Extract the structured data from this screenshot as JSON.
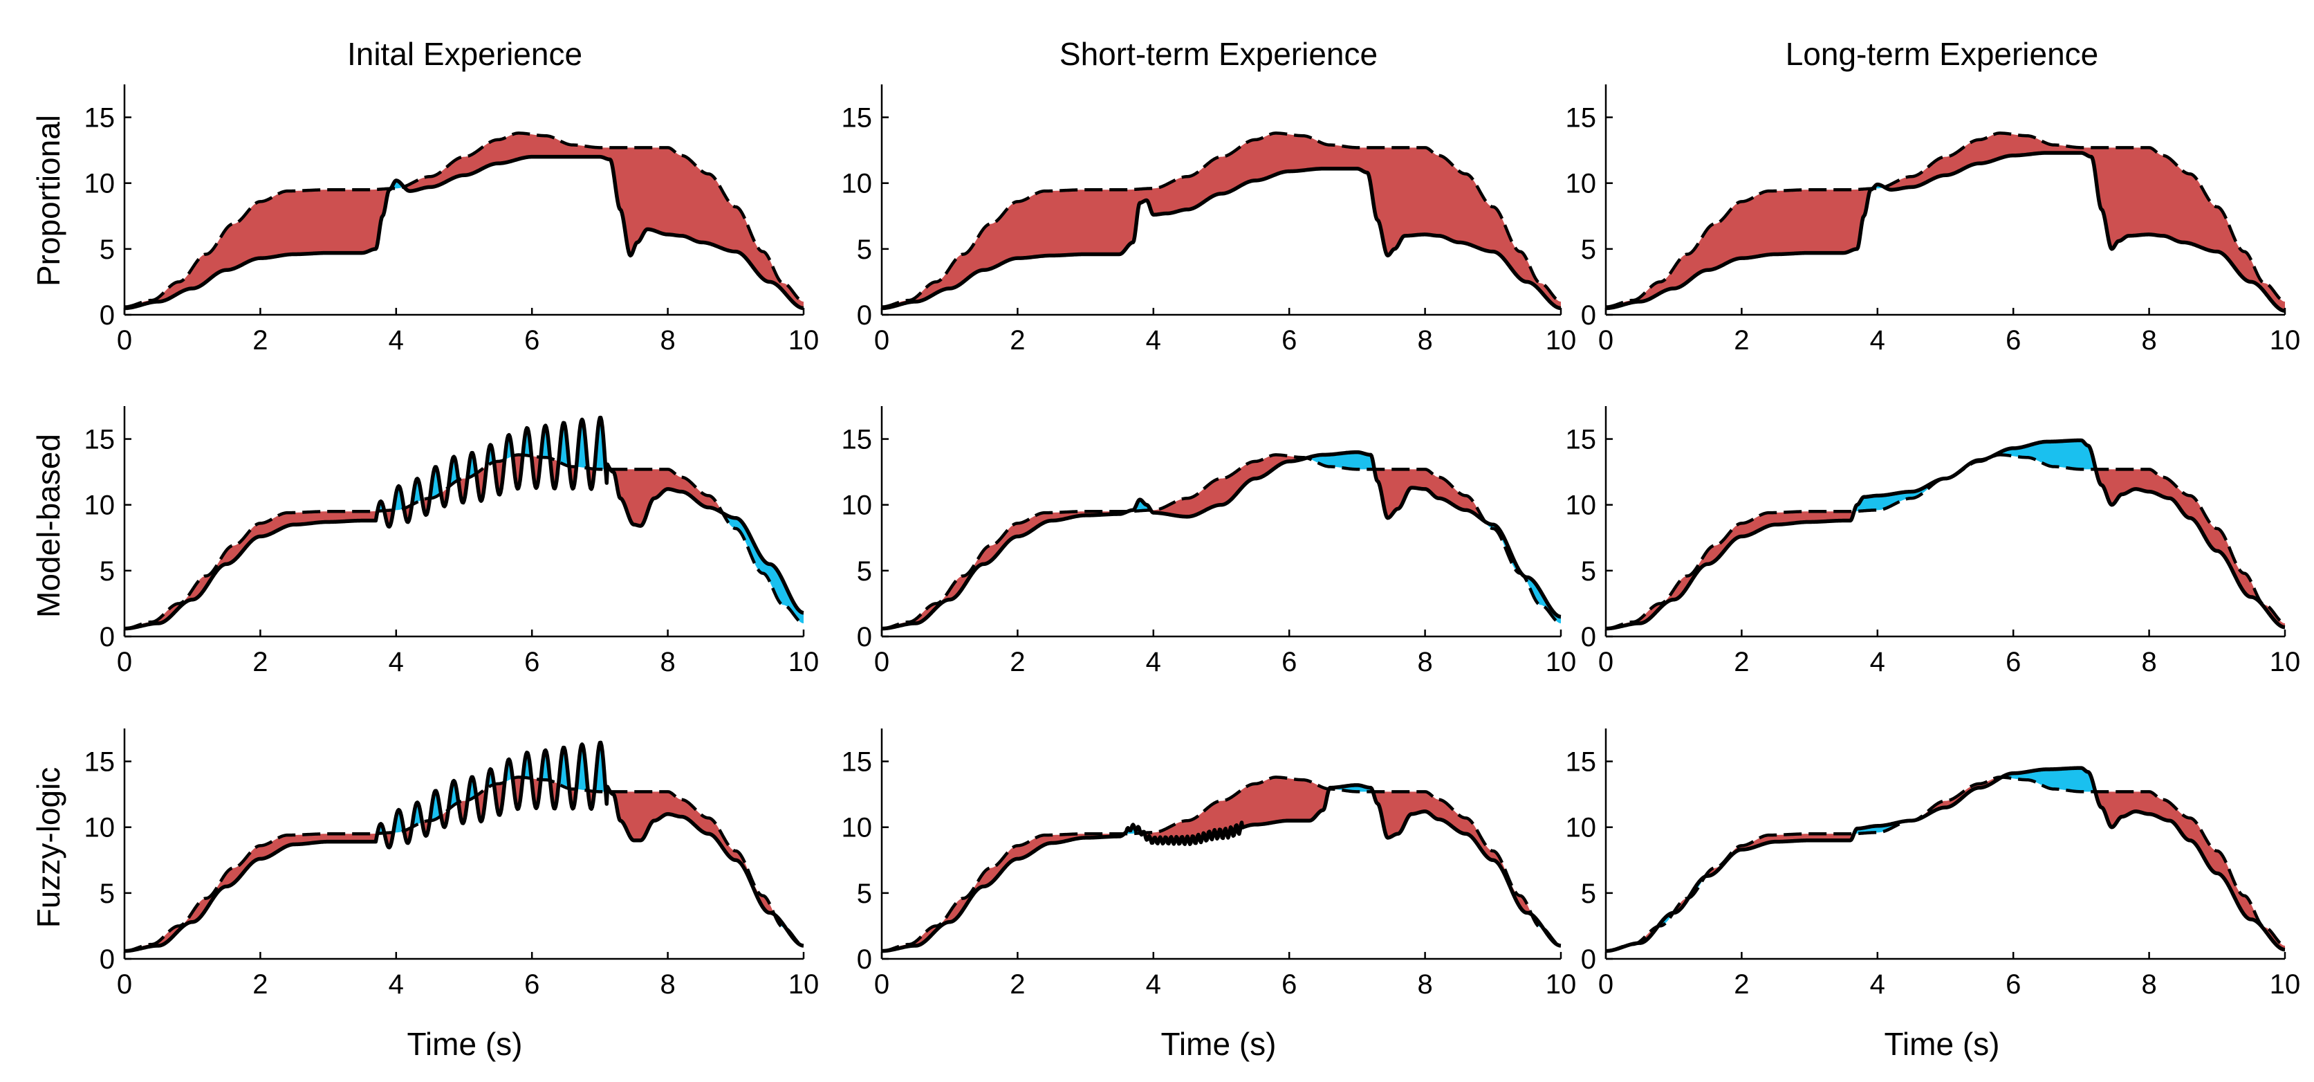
{
  "figure": {
    "columns": [
      "Inital Experience",
      "Short-term Experience",
      "Long-term Experience"
    ],
    "rows": [
      "Proportional",
      "Model-based",
      "Fuzzy-logic"
    ],
    "xlabel": "Time (s)",
    "colors": {
      "overshoot_fill": "#cd5050",
      "undershoot_fill": "#1ac0ef",
      "line": "#000000"
    }
  },
  "chart_data": {
    "type": "line",
    "description_units": "x: time (s); y: value",
    "x_range": [
      0,
      10
    ],
    "y_range": [
      0,
      17.5
    ],
    "x_ticks": [
      0,
      2,
      4,
      6,
      8,
      10
    ],
    "y_ticks": [
      0,
      5,
      10,
      15
    ],
    "legend": "none",
    "reference_series": {
      "name": "Target (dashed)",
      "x": [
        0,
        0.4,
        0.8,
        1.2,
        1.6,
        2.0,
        2.4,
        3.0,
        3.6,
        4.0,
        4.5,
        5.0,
        5.5,
        5.8,
        6.2,
        6.6,
        7.0,
        7.5,
        8.0,
        8.2,
        8.6,
        9.0,
        9.4,
        9.7,
        10.0
      ],
      "values": [
        0.6,
        1.1,
        2.5,
        4.6,
        6.9,
        8.6,
        9.4,
        9.5,
        9.5,
        9.6,
        10.5,
        12.0,
        13.3,
        13.8,
        13.6,
        12.9,
        12.7,
        12.7,
        12.7,
        12.1,
        10.7,
        8.2,
        4.8,
        2.4,
        1.0
      ]
    },
    "panels": [
      {
        "row": "Proportional",
        "column": "Inital Experience",
        "x": [
          0,
          0.5,
          1.0,
          1.5,
          2.0,
          2.5,
          3.0,
          3.5,
          3.7,
          3.8,
          3.9,
          4.0,
          4.2,
          4.5,
          5.0,
          5.5,
          6.0,
          6.5,
          7.0,
          7.15,
          7.3,
          7.45,
          7.55,
          7.7,
          8.0,
          8.2,
          8.5,
          9.0,
          9.5,
          10.0
        ],
        "values": [
          0.5,
          1.0,
          2.0,
          3.4,
          4.3,
          4.6,
          4.7,
          4.7,
          5.0,
          7.5,
          9.5,
          10.2,
          9.4,
          9.7,
          10.6,
          11.5,
          12.0,
          12.0,
          12.0,
          11.8,
          8.0,
          4.5,
          5.5,
          6.5,
          6.1,
          6.0,
          5.5,
          4.8,
          2.5,
          0.5
        ]
      },
      {
        "row": "Proportional",
        "column": "Short-term Experience",
        "x": [
          0,
          0.5,
          1.0,
          1.5,
          2.0,
          2.5,
          3.0,
          3.5,
          3.7,
          3.8,
          3.9,
          4.0,
          4.2,
          4.5,
          5.0,
          5.5,
          6.0,
          6.5,
          7.0,
          7.15,
          7.3,
          7.45,
          7.55,
          7.7,
          8.0,
          8.2,
          8.5,
          9.0,
          9.5,
          10.0
        ],
        "values": [
          0.5,
          1.0,
          2.0,
          3.4,
          4.3,
          4.5,
          4.6,
          4.6,
          5.5,
          8.5,
          8.7,
          7.6,
          7.7,
          8.0,
          9.2,
          10.2,
          10.9,
          11.1,
          11.1,
          10.8,
          7.2,
          4.5,
          5.0,
          6.0,
          6.1,
          6.0,
          5.5,
          4.8,
          2.5,
          0.5
        ]
      },
      {
        "row": "Proportional",
        "column": "Long-term Experience",
        "x": [
          0,
          0.5,
          1.0,
          1.5,
          2.0,
          2.5,
          3.0,
          3.5,
          3.7,
          3.8,
          3.9,
          4.0,
          4.2,
          4.5,
          5.0,
          5.5,
          6.0,
          6.5,
          7.0,
          7.15,
          7.3,
          7.45,
          7.55,
          7.7,
          8.0,
          8.2,
          8.5,
          9.0,
          9.5,
          10.0
        ],
        "values": [
          0.5,
          1.0,
          2.0,
          3.4,
          4.3,
          4.6,
          4.7,
          4.7,
          5.0,
          7.5,
          9.5,
          9.9,
          9.5,
          9.7,
          10.6,
          11.5,
          12.1,
          12.3,
          12.3,
          12.0,
          8.0,
          5.0,
          5.6,
          6.0,
          6.1,
          6.0,
          5.5,
          4.8,
          2.5,
          0.3
        ]
      },
      {
        "row": "Model-based",
        "column": "Inital Experience",
        "x": [
          0,
          0.5,
          1.0,
          1.5,
          2.0,
          2.5,
          3.0,
          3.5,
          3.7,
          4.0,
          5.0,
          6.0,
          7.0,
          7.2,
          7.3,
          7.5,
          7.6,
          7.8,
          8.0,
          8.2,
          8.6,
          9.0,
          9.5,
          10.0
        ],
        "values": [
          0.6,
          1.0,
          2.8,
          5.5,
          7.6,
          8.5,
          8.7,
          8.8,
          8.8,
          10.0,
          12.0,
          13.6,
          13.9,
          12.5,
          10.5,
          8.5,
          8.4,
          10.5,
          11.2,
          11.0,
          9.8,
          9.0,
          5.5,
          1.8
        ],
        "oscillation": {
          "x_range": [
            3.7,
            7.1
          ],
          "amplitude_max": 2.8,
          "period": 0.27
        }
      },
      {
        "row": "Model-based",
        "column": "Short-term Experience",
        "x": [
          0,
          0.5,
          1.0,
          1.5,
          2.0,
          2.5,
          3.0,
          3.5,
          3.7,
          3.8,
          3.9,
          4.0,
          4.5,
          5.0,
          5.5,
          6.0,
          6.5,
          7.0,
          7.2,
          7.3,
          7.45,
          7.6,
          7.8,
          8.0,
          8.2,
          8.6,
          9.0,
          9.5,
          10.0
        ],
        "values": [
          0.6,
          1.0,
          2.8,
          5.5,
          7.6,
          8.8,
          9.2,
          9.3,
          9.6,
          10.4,
          10.0,
          9.4,
          9.1,
          10.0,
          12.0,
          13.3,
          13.8,
          14.0,
          13.8,
          11.8,
          9.0,
          9.7,
          11.3,
          11.2,
          10.5,
          9.6,
          8.5,
          4.5,
          1.5
        ]
      },
      {
        "row": "Model-based",
        "column": "Long-term Experience",
        "x": [
          0,
          0.5,
          1.0,
          1.5,
          2.0,
          2.5,
          3.0,
          3.5,
          3.6,
          3.7,
          3.8,
          4.0,
          4.5,
          5.0,
          5.5,
          6.0,
          6.5,
          7.0,
          7.1,
          7.3,
          7.45,
          7.6,
          7.8,
          8.0,
          8.3,
          8.6,
          9.0,
          9.5,
          10.0
        ],
        "values": [
          0.6,
          1.0,
          2.8,
          5.5,
          7.6,
          8.5,
          8.7,
          8.8,
          8.8,
          10.0,
          10.6,
          10.7,
          11.0,
          12.0,
          13.4,
          14.3,
          14.8,
          14.9,
          14.5,
          11.5,
          10.0,
          10.8,
          11.2,
          11.0,
          10.5,
          9.0,
          6.5,
          3.0,
          0.7
        ]
      },
      {
        "row": "Fuzzy-logic",
        "column": "Inital Experience",
        "x": [
          0,
          0.5,
          1.0,
          1.5,
          2.0,
          2.5,
          3.0,
          3.5,
          3.7,
          4.0,
          5.0,
          6.0,
          7.0,
          7.2,
          7.3,
          7.5,
          7.6,
          7.8,
          8.0,
          8.2,
          8.6,
          9.0,
          9.5,
          10.0
        ],
        "values": [
          0.6,
          1.0,
          2.8,
          5.5,
          7.6,
          8.7,
          8.9,
          8.9,
          8.9,
          10.0,
          12.0,
          13.6,
          13.9,
          12.5,
          10.5,
          9.0,
          9.0,
          10.5,
          11.0,
          10.8,
          9.5,
          7.5,
          3.5,
          1.0
        ],
        "oscillation": {
          "x_range": [
            3.7,
            7.1
          ],
          "amplitude_max": 2.6,
          "period": 0.27
        }
      },
      {
        "row": "Fuzzy-logic",
        "column": "Short-term Experience",
        "x": [
          0,
          0.5,
          1.0,
          1.5,
          2.0,
          2.5,
          3.0,
          3.5,
          3.7,
          4.0,
          4.5,
          5.0,
          5.5,
          6.0,
          6.3,
          6.5,
          6.6,
          7.0,
          7.2,
          7.3,
          7.45,
          7.6,
          7.8,
          8.0,
          8.2,
          8.6,
          9.0,
          9.5,
          10.0
        ],
        "values": [
          0.6,
          1.0,
          2.8,
          5.5,
          7.6,
          8.8,
          9.2,
          9.3,
          10.0,
          9.0,
          9.0,
          9.5,
          10.2,
          10.5,
          10.5,
          11.3,
          13.0,
          13.2,
          13.0,
          11.8,
          9.2,
          9.5,
          11.0,
          11.2,
          10.6,
          9.5,
          7.5,
          3.5,
          1.0
        ],
        "oscillation": {
          "x_range": [
            3.6,
            5.3
          ],
          "amplitude_max": 0.4,
          "period": 0.08
        }
      },
      {
        "row": "Fuzzy-logic",
        "column": "Long-term Experience",
        "x": [
          0,
          0.5,
          1.0,
          1.5,
          2.0,
          2.5,
          3.0,
          3.5,
          3.6,
          3.7,
          4.0,
          4.5,
          5.0,
          5.5,
          6.0,
          6.5,
          7.0,
          7.1,
          7.3,
          7.45,
          7.6,
          7.8,
          8.0,
          8.3,
          8.6,
          9.0,
          9.5,
          10.0
        ],
        "values": [
          0.6,
          1.2,
          3.5,
          6.3,
          8.3,
          8.9,
          9.0,
          9.0,
          9.0,
          9.9,
          10.1,
          10.5,
          11.5,
          13.0,
          14.1,
          14.4,
          14.5,
          14.2,
          11.5,
          10.0,
          10.8,
          11.2,
          11.0,
          10.5,
          9.0,
          6.5,
          3.0,
          0.7
        ]
      }
    ]
  }
}
